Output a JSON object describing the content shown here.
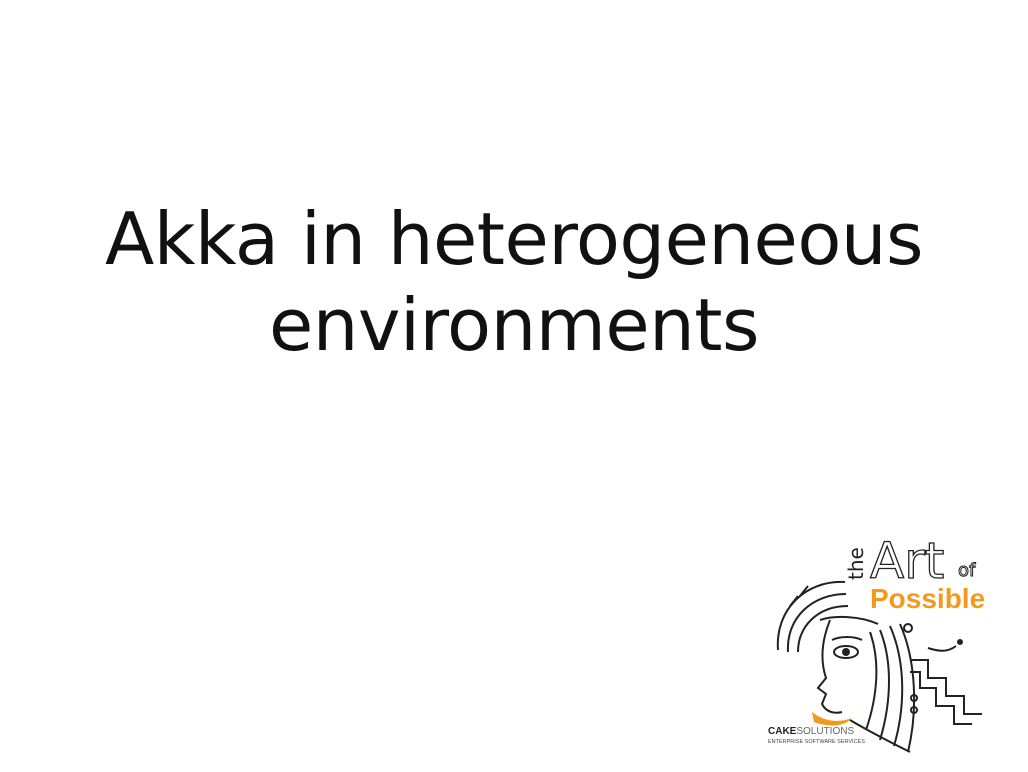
{
  "slide": {
    "title_line1": "Akka in heterogeneous",
    "title_line2": "environments"
  },
  "logo": {
    "word_the": "the",
    "word_art": "Art",
    "word_of": "of",
    "word_possible": "Possible",
    "company_cake": "CAKE",
    "company_solutions": "SOLUTIONS",
    "company_tagline": "ENTERPRISE SOFTWARE SERVICES",
    "accent_color": "#f39a1e"
  }
}
